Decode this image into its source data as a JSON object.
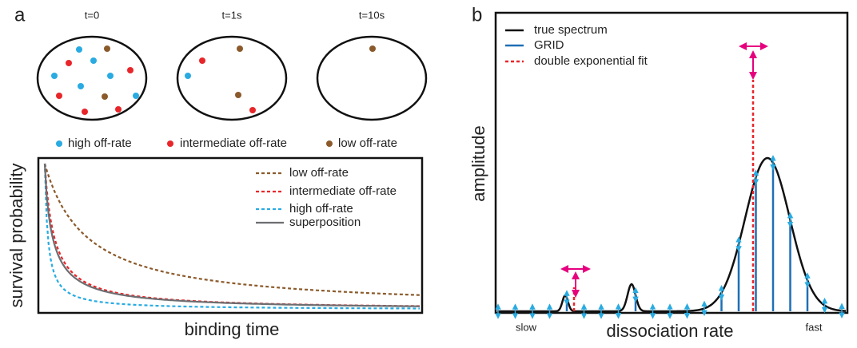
{
  "panel_a": {
    "label": "a",
    "time_labels": [
      "t=0",
      "t=1s",
      "t=10s"
    ],
    "dot_legend": [
      "high off-rate",
      "intermediate off-rate",
      "low off-rate"
    ],
    "plot_legend": [
      "low off-rate",
      "intermediate off-rate",
      "high off-rate",
      "superposition"
    ],
    "y_label": "survival probability",
    "x_label": "binding time"
  },
  "panel_b": {
    "label": "b",
    "legend": [
      "true spectrum",
      "GRID",
      "double exponential fit"
    ],
    "y_label": "amplitude",
    "x_label": "dissociation rate",
    "x_left": "slow",
    "x_right": "fast"
  }
}
